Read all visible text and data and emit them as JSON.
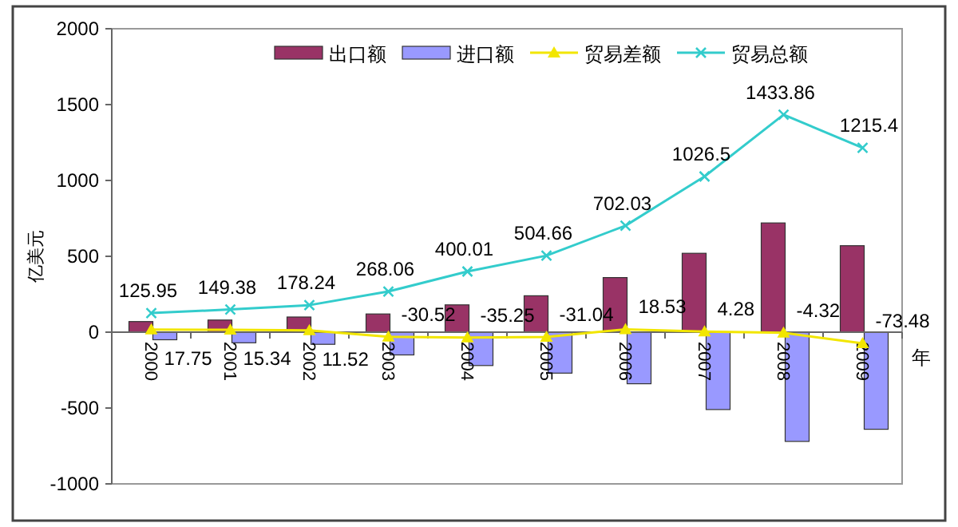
{
  "chart_data": {
    "type": "bar",
    "ylabel": "亿美元",
    "xlabel": "年",
    "categories": [
      "2000",
      "2001",
      "2002",
      "2003",
      "2004",
      "2005",
      "2006",
      "2007",
      "2008",
      "2009"
    ],
    "ylim": [
      -1000,
      2000
    ],
    "yticks": [
      -1000,
      -500,
      0,
      500,
      1000,
      1500,
      2000
    ],
    "legend": "top",
    "grid": false,
    "series": [
      {
        "name": "出口额",
        "color": "#993366",
        "values": [
          70,
          80,
          100,
          120,
          180,
          240,
          360,
          520,
          720,
          570
        ]
      },
      {
        "name": "进口额",
        "color": "#9999ff",
        "values": [
          -50,
          -70,
          -80,
          -150,
          -220,
          -270,
          -340,
          -510,
          -720,
          -640
        ]
      },
      {
        "name": "贸易差额",
        "type": "line",
        "color": "#f2e600",
        "marker": "triangle",
        "values": [
          17.75,
          15.34,
          11.52,
          -30.52,
          -35.25,
          -31.04,
          18.53,
          4.28,
          -4.32,
          -73.48
        ],
        "value_labels": [
          "17.75",
          "15.34",
          "11.52",
          "-30.52",
          "-35.25",
          "-31.04",
          "18.53",
          "4.28",
          "-4.32",
          "-73.48"
        ]
      },
      {
        "name": "贸易总额",
        "type": "line",
        "color": "#33cccc",
        "marker": "cross",
        "values": [
          125.95,
          149.38,
          178.24,
          268.06,
          400.01,
          504.66,
          702.03,
          1026.5,
          1433.86,
          1215.4
        ],
        "value_labels": [
          "125.95",
          "149.38",
          "178.24",
          "268.06",
          "400.01",
          "504.66",
          "702.03",
          "1026.5",
          "1433.86",
          "1215.4"
        ]
      }
    ]
  }
}
